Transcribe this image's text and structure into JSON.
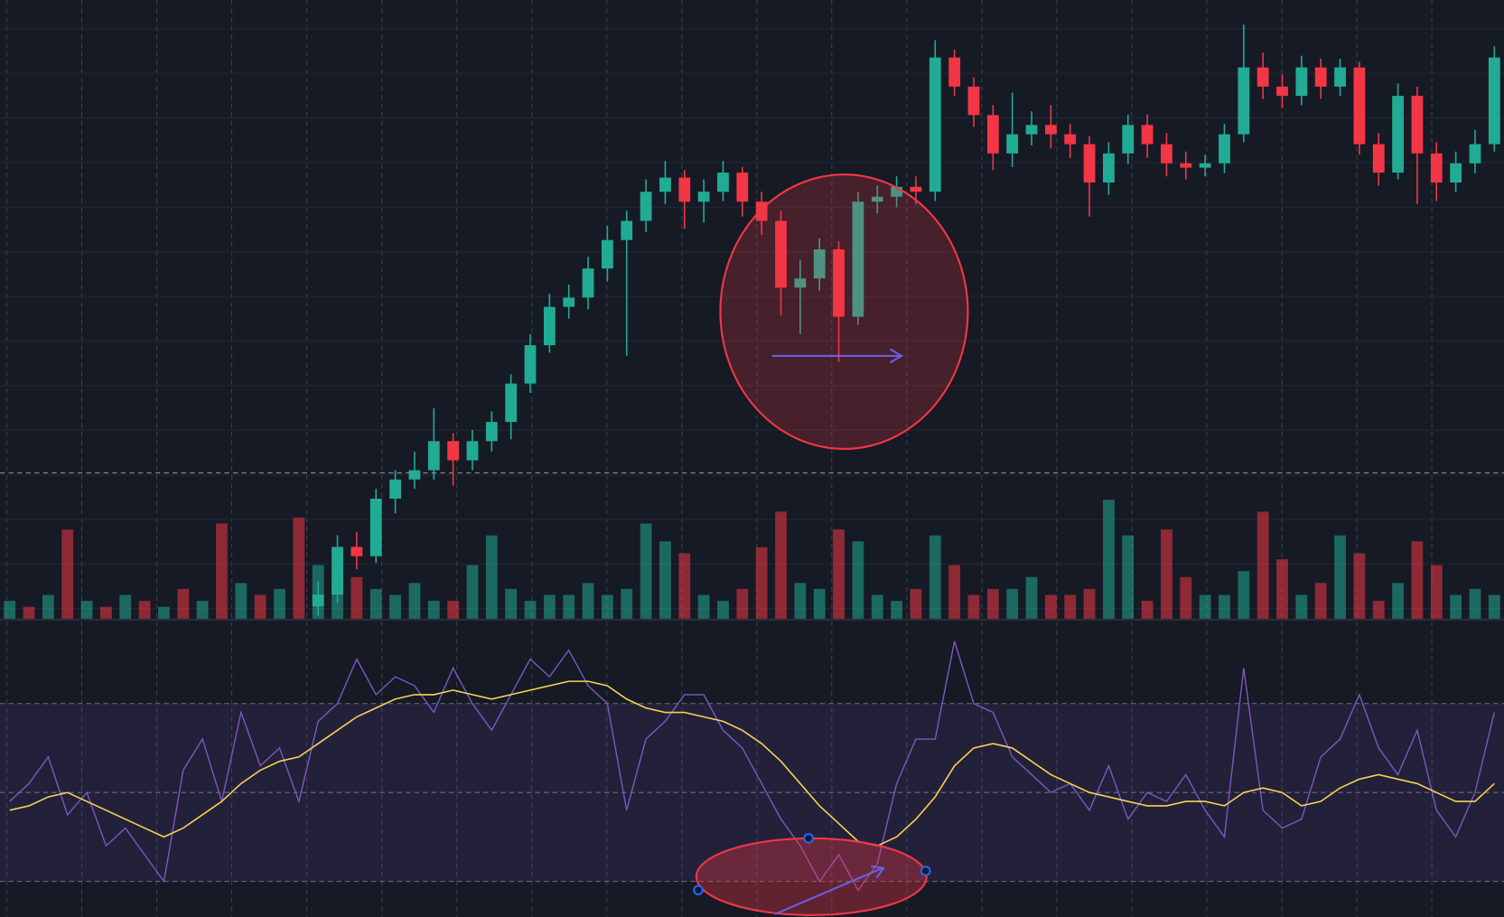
{
  "chart_data": [
    {
      "type": "candlestick",
      "up_color": "#22ab94",
      "down_color": "#f23645",
      "ylim": [
        0,
        100
      ],
      "open": [
        null,
        null,
        null,
        null,
        null,
        null,
        null,
        null,
        null,
        null,
        null,
        null,
        null,
        null,
        null,
        null,
        2.0,
        3.9,
        11.6,
        10.1,
        19.4,
        22.5,
        24.0,
        28.7,
        25.6,
        28.7,
        31.8,
        38.0,
        44.2,
        50.4,
        51.9,
        56.6,
        61.2,
        64.3,
        69.0,
        71.3,
        67.4,
        69.0,
        72.1,
        67.4,
        64.3,
        53.5,
        55.0,
        59.7,
        48.8,
        67.4,
        68.2,
        69.8,
        69.0,
        90.7,
        86.0,
        81.4,
        75.2,
        78.3,
        79.8,
        78.3,
        76.7,
        70.5,
        75.2,
        79.8,
        76.7,
        73.6,
        72.9,
        73.6,
        78.3,
        89.1,
        86.0,
        84.5,
        89.1,
        86.0,
        89.1,
        76.7,
        72.1,
        84.5,
        75.2,
        70.5,
        73.6,
        76.7
      ],
      "high": [
        null,
        null,
        null,
        null,
        null,
        null,
        null,
        null,
        null,
        null,
        null,
        null,
        null,
        null,
        null,
        null,
        6,
        13.5,
        14,
        21,
        24,
        27,
        34,
        30,
        30.5,
        33.5,
        39.5,
        46,
        52.5,
        54,
        58.5,
        63.5,
        66,
        71,
        74,
        72.5,
        71,
        74,
        73,
        69,
        66,
        58,
        61.5,
        61,
        69,
        70,
        71.5,
        71.5,
        93.5,
        92,
        87.5,
        83,
        85,
        82,
        83,
        80,
        78,
        77,
        81.5,
        81.5,
        78.5,
        75.5,
        75,
        80,
        96,
        91.5,
        88,
        91,
        90.5,
        90.5,
        90,
        78.5,
        86.5,
        86,
        77,
        75.5,
        79,
        92.5
      ],
      "low": [
        null,
        null,
        null,
        null,
        null,
        null,
        null,
        null,
        null,
        null,
        null,
        null,
        null,
        null,
        null,
        null,
        0.5,
        2.5,
        8,
        9,
        17,
        21,
        22.5,
        21.5,
        24,
        27,
        29,
        36.5,
        43,
        48.5,
        50,
        54.5,
        42.5,
        62.5,
        67,
        63,
        64,
        67.5,
        65,
        62,
        49,
        46,
        53,
        41.5,
        47.5,
        65.5,
        66.5,
        67,
        67.5,
        84.5,
        79.5,
        72.5,
        73,
        76.5,
        76,
        74.5,
        65,
        68.5,
        73.5,
        74.5,
        71.5,
        71,
        71.5,
        72,
        77,
        84,
        82.5,
        83,
        84,
        84.5,
        75,
        70,
        71,
        67,
        67.5,
        69,
        72,
        75.5
      ],
      "close": [
        null,
        null,
        null,
        null,
        null,
        null,
        null,
        null,
        null,
        null,
        null,
        null,
        null,
        null,
        null,
        null,
        3.9,
        11.6,
        10.1,
        19.4,
        22.5,
        24.0,
        28.7,
        25.6,
        28.7,
        31.8,
        38.0,
        44.2,
        50.4,
        51.9,
        56.6,
        61.2,
        64.3,
        69.0,
        71.3,
        67.4,
        69.0,
        72.1,
        67.4,
        64.3,
        53.5,
        55.0,
        59.7,
        48.8,
        67.4,
        68.2,
        69.8,
        69.0,
        90.7,
        86.0,
        81.4,
        75.2,
        78.3,
        79.8,
        78.3,
        76.7,
        70.5,
        75.2,
        79.8,
        76.7,
        73.6,
        72.9,
        73.6,
        78.3,
        89.1,
        86.0,
        84.5,
        89.1,
        86.0,
        89.1,
        76.7,
        72.1,
        84.5,
        75.2,
        70.5,
        73.6,
        76.7,
        90.7
      ],
      "volume": {
        "ylim": [
          0,
          25
        ],
        "values": [
          3,
          2,
          4,
          15,
          3,
          2,
          4,
          3,
          2,
          5,
          3,
          16,
          6,
          4,
          5,
          17,
          9,
          6,
          7,
          5,
          4,
          6,
          3,
          3,
          9,
          14,
          5,
          3,
          4,
          4,
          6,
          4,
          5,
          16,
          13,
          11,
          4,
          3,
          5,
          12,
          18,
          6,
          5,
          15,
          13,
          4,
          3,
          5,
          14,
          9,
          4,
          5,
          5,
          7,
          4,
          4,
          5,
          20,
          14,
          3,
          15,
          7,
          4,
          4,
          8,
          18,
          10,
          4,
          6,
          14,
          11,
          3,
          6,
          13,
          9,
          4,
          5,
          4
        ]
      }
    },
    {
      "type": "line",
      "ylim": [
        22,
        88
      ],
      "levels": [
        30,
        50,
        70
      ],
      "band_color": "#7e57c2",
      "series": [
        {
          "color": "#7e57c2",
          "values": [
            48,
            52,
            58,
            45,
            50,
            38,
            42,
            36,
            30,
            55,
            62,
            48,
            68,
            56,
            60,
            48,
            66,
            70,
            80,
            72,
            76,
            74,
            68,
            78,
            70,
            64,
            72,
            80,
            76,
            82,
            74,
            70,
            46,
            62,
            66,
            72,
            72,
            64,
            60,
            52,
            44,
            38,
            30,
            36,
            28,
            34,
            52,
            62,
            62,
            84,
            70,
            68,
            58,
            54,
            50,
            52,
            46,
            56,
            44,
            50,
            48,
            54,
            46,
            40,
            78,
            46,
            42,
            44,
            58,
            62,
            72,
            60,
            54,
            64,
            46,
            40,
            50,
            68
          ]
        },
        {
          "color": "#f7d154",
          "values": [
            46,
            47,
            49,
            50,
            48,
            46,
            44,
            42,
            40,
            42,
            45,
            48,
            52,
            55,
            57,
            58,
            61,
            64,
            67,
            69,
            71,
            72,
            72,
            73,
            72,
            71,
            72,
            73,
            74,
            75,
            75,
            74,
            71,
            69,
            68,
            68,
            67,
            66,
            64,
            61,
            57,
            52,
            47,
            43,
            39,
            38,
            40,
            44,
            49,
            56,
            60,
            61,
            60,
            57,
            54,
            52,
            50,
            49,
            48,
            47,
            47,
            48,
            48,
            47,
            50,
            51,
            50,
            47,
            48,
            51,
            53,
            54,
            53,
            52,
            50,
            48,
            48,
            52
          ]
        }
      ]
    }
  ]
}
